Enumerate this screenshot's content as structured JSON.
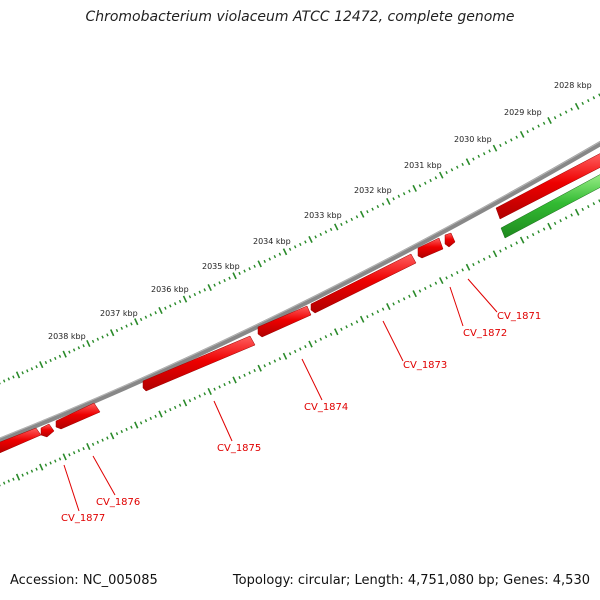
{
  "title": "Chromobacterium violaceum ATCC 12472, complete genome",
  "footer": {
    "accession": "Accession: NC_005085",
    "summary": "Topology: circular; Length: 4,751,080 bp; Genes: 4,530"
  },
  "colors": {
    "backbone": "#8a8a8a",
    "forward_gene": "#ee0000",
    "reverse_gene": "#33bb33",
    "scale_ticks": "#2a8a2a",
    "label_text": "#e00000"
  },
  "scale_labels": [
    "2028 kbp",
    "2029 kbp",
    "2030 kbp",
    "2031 kbp",
    "2032 kbp",
    "2033 kbp",
    "2034 kbp",
    "2035 kbp",
    "2036 kbp",
    "2037 kbp",
    "2038 kbp"
  ],
  "genes": [
    "CV_1871",
    "CV_1872",
    "CV_1873",
    "CV_1874",
    "CV_1875",
    "CV_1876",
    "CV_1877"
  ]
}
